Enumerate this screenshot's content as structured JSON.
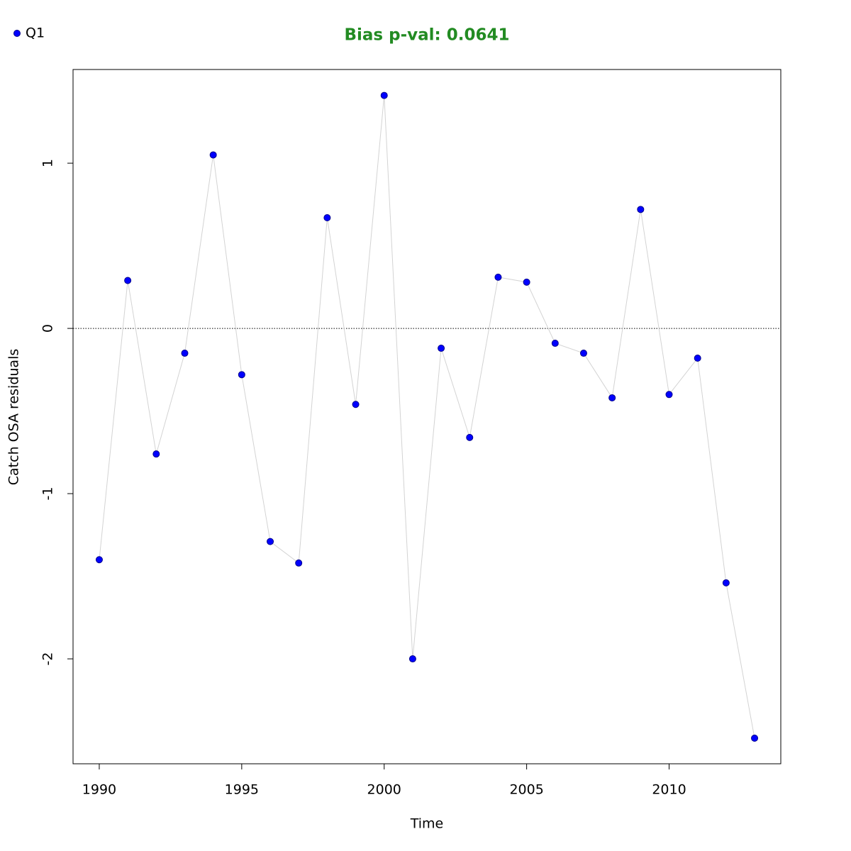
{
  "chart_data": {
    "type": "scatter-line",
    "title": "Bias p-val: 0.0641",
    "title_color": "#228b22",
    "x_label": "Time",
    "y_label": "Catch OSA residuals",
    "x": [
      1990,
      1991,
      1992,
      1993,
      1994,
      1995,
      1996,
      1997,
      1998,
      1999,
      2000,
      2001,
      2002,
      2003,
      2004,
      2005,
      2006,
      2007,
      2008,
      2009,
      2010,
      2011,
      2012,
      2013
    ],
    "series": [
      {
        "name": "Q1",
        "color": "#0000ff",
        "line_color": "#d3d3d3",
        "values": [
          -1.4,
          0.29,
          -0.76,
          -0.15,
          1.05,
          -0.28,
          -1.29,
          -1.42,
          0.67,
          -0.46,
          1.41,
          -2.0,
          -0.12,
          -0.66,
          0.31,
          0.28,
          -0.09,
          -0.15,
          -0.42,
          0.72,
          -0.4,
          -0.18,
          -1.54,
          -2.48
        ]
      }
    ],
    "xlim": [
      1989.08,
      2013.92
    ],
    "ylim": [
      -2.635,
      1.567
    ],
    "xticks": [
      1990,
      1995,
      2000,
      2005,
      2010
    ],
    "yticks": [
      -2,
      -1,
      0,
      1
    ],
    "reference_line": 0,
    "legend": "top-left"
  }
}
